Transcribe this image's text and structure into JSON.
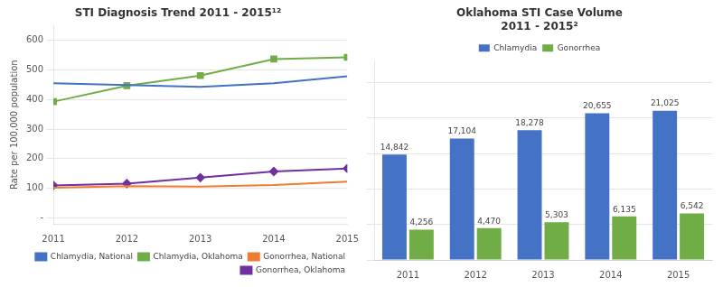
{
  "chart_data": [
    {
      "type": "line",
      "title": "STI Diagnosis Trend 2011 - 2015¹²",
      "ylabel": "Rate per 100,000 population",
      "categories": [
        "2011",
        "2012",
        "2013",
        "2014",
        "2015"
      ],
      "series": [
        {
          "name": "Chlamydia, National",
          "color": "#4472C4",
          "marker": "none",
          "values": [
            455,
            449,
            443,
            455,
            479
          ]
        },
        {
          "name": "Chlamydia, Oklahoma",
          "color": "#70AD47",
          "marker": "square",
          "values": [
            393,
            447,
            481,
            537,
            543
          ]
        },
        {
          "name": "Gonorrhea, National",
          "color": "#ED7D31",
          "marker": "none",
          "values": [
            102,
            107,
            106,
            111,
            123
          ]
        },
        {
          "name": "Gonorrhea, Oklahoma",
          "color": "#7030A0",
          "marker": "diamond",
          "values": [
            110,
            116,
            136,
            157,
            167
          ]
        }
      ],
      "ylim": [
        -20,
        650
      ],
      "yticks": [
        {
          "value": 0,
          "label": "-"
        },
        100,
        200,
        300,
        400,
        500,
        600
      ],
      "grid": true,
      "legend": "lower right"
    },
    {
      "type": "bar",
      "title": "Oklahoma STI Case Volume\n2011 - 2015²",
      "categories": [
        "2011",
        "2012",
        "2013",
        "2014",
        "2015"
      ],
      "series": [
        {
          "name": "Chlamydia",
          "color": "#4472C4",
          "values": [
            14842,
            17104,
            18278,
            20655,
            21025
          ],
          "value_labels": [
            "14,842",
            "17,104",
            "18,278",
            "20,655",
            "21,025"
          ]
        },
        {
          "name": "Gonorrhea",
          "color": "#70AD47",
          "values": [
            4256,
            4470,
            5303,
            6135,
            6542
          ],
          "value_labels": [
            "4,256",
            "4,470",
            "5,303",
            "6,135",
            "6,542"
          ]
        }
      ],
      "ylim": [
        0,
        28000
      ],
      "yticks": [
        0,
        5000,
        10000,
        15000,
        20000,
        25000
      ],
      "grid": true,
      "legend": "top",
      "data_labels": true,
      "tick_labels": "x"
    }
  ]
}
